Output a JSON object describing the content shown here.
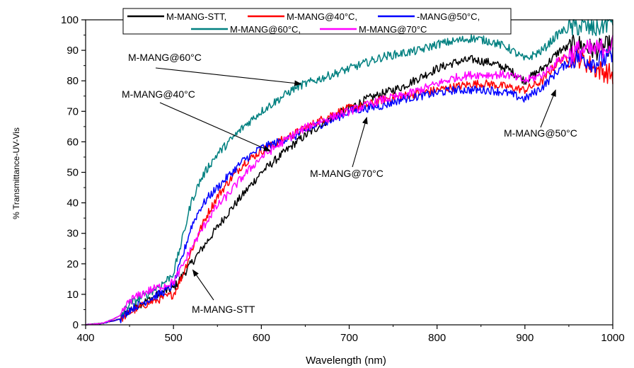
{
  "chart_data": {
    "type": "line",
    "xlabel": "Wavelength (nm)",
    "ylabel": "% Transmittance-UV-Vis",
    "xlim": [
      400,
      1000
    ],
    "ylim": [
      0,
      100
    ],
    "xticks": [
      400,
      500,
      600,
      700,
      800,
      900,
      1000
    ],
    "yticks": [
      0,
      10,
      20,
      30,
      40,
      50,
      60,
      70,
      80,
      90,
      100
    ],
    "grid": false,
    "legend_position": "top",
    "legend_labels": [
      "M-MANG-STT,",
      "M-MANG@40°C,",
      "-MANG@50°C,",
      "M-MANG@60°C,",
      "M-MANG@70°C"
    ],
    "series": [
      {
        "name": "M-MANG-STT",
        "color": "#000000",
        "x": [
          400,
          420,
          440,
          450,
          470,
          490,
          500,
          510,
          520,
          530,
          540,
          550,
          560,
          580,
          600,
          620,
          640,
          660,
          680,
          700,
          720,
          740,
          760,
          780,
          800,
          820,
          840,
          860,
          880,
          900,
          920,
          940,
          960,
          980,
          1000
        ],
        "y": [
          0,
          0.5,
          2,
          5,
          8,
          11,
          12,
          16,
          20,
          24,
          28,
          32,
          36,
          43,
          50,
          55,
          60,
          64,
          68,
          71,
          74,
          76,
          78,
          81,
          84,
          86,
          87,
          86,
          84,
          80,
          84,
          90,
          92,
          90,
          92
        ]
      },
      {
        "name": "M-MANG@40°C",
        "color": "#ff0000",
        "x": [
          400,
          420,
          440,
          450,
          470,
          490,
          500,
          510,
          520,
          530,
          540,
          550,
          560,
          580,
          600,
          620,
          640,
          660,
          680,
          700,
          720,
          740,
          760,
          780,
          800,
          820,
          840,
          860,
          880,
          900,
          920,
          940,
          960,
          980,
          1000
        ],
        "y": [
          0,
          0.5,
          2,
          4,
          7,
          9,
          10,
          16,
          24,
          31,
          37,
          42,
          46,
          53,
          57,
          60,
          63,
          66,
          69,
          71,
          72,
          74,
          75,
          76,
          77,
          78,
          79,
          79,
          78,
          77,
          80,
          87,
          88,
          84,
          82
        ]
      },
      {
        "name": "M-MANG@50°C",
        "color": "#0000ff",
        "x": [
          400,
          420,
          440,
          450,
          470,
          490,
          500,
          510,
          520,
          530,
          540,
          550,
          560,
          580,
          600,
          620,
          640,
          660,
          680,
          700,
          720,
          740,
          760,
          780,
          800,
          820,
          840,
          860,
          880,
          900,
          920,
          940,
          960,
          980,
          1000
        ],
        "y": [
          0,
          0.5,
          2,
          5,
          8,
          11,
          13,
          22,
          32,
          38,
          42,
          45,
          48,
          54,
          58,
          60,
          62,
          65,
          67,
          70,
          71,
          72,
          74,
          75,
          76,
          77,
          77,
          77,
          76,
          74,
          78,
          84,
          88,
          86,
          88
        ]
      },
      {
        "name": "M-MANG@60°C",
        "color": "#008080",
        "x": [
          400,
          420,
          440,
          450,
          470,
          490,
          500,
          510,
          520,
          530,
          540,
          550,
          560,
          580,
          600,
          620,
          640,
          660,
          680,
          700,
          720,
          740,
          760,
          780,
          800,
          820,
          840,
          860,
          880,
          900,
          920,
          940,
          960,
          980,
          1000
        ],
        "y": [
          0,
          0.5,
          3,
          7,
          10,
          14,
          17,
          28,
          40,
          47,
          52,
          56,
          59,
          65,
          70,
          74,
          78,
          80,
          82,
          84,
          86,
          88,
          89,
          90,
          92,
          93,
          94,
          93,
          91,
          87,
          90,
          96,
          98,
          97,
          100
        ]
      },
      {
        "name": "M-MANG@70°C",
        "color": "#ff00ff",
        "x": [
          400,
          420,
          440,
          450,
          470,
          490,
          500,
          510,
          520,
          530,
          540,
          550,
          560,
          580,
          600,
          620,
          640,
          660,
          680,
          700,
          720,
          740,
          760,
          780,
          800,
          820,
          840,
          860,
          880,
          900,
          920,
          940,
          960,
          980,
          1000
        ],
        "y": [
          0,
          0.5,
          3,
          8,
          11,
          13,
          14,
          19,
          25,
          30,
          35,
          39,
          42,
          49,
          55,
          59,
          63,
          66,
          68,
          70,
          72,
          74,
          75,
          77,
          79,
          81,
          82,
          82,
          82,
          80,
          82,
          87,
          90,
          90,
          92
        ]
      }
    ],
    "annotations": [
      {
        "text": "M-MANG@60°C",
        "series": "M-MANG@60°C",
        "target": [
          645,
          79
        ]
      },
      {
        "text": "M-MANG@40°C",
        "series": "M-MANG@40°C",
        "target": [
          610,
          57
        ]
      },
      {
        "text": "M-MANG@70°C",
        "series": "M-MANG@70°C",
        "target": [
          720,
          68
        ]
      },
      {
        "text": "M-MANG@50°C",
        "series": "M-MANG@50°C",
        "target": [
          935,
          77
        ]
      },
      {
        "text": "M-MANG-STT",
        "series": "M-MANG-STT",
        "target": [
          522,
          18
        ]
      }
    ]
  }
}
